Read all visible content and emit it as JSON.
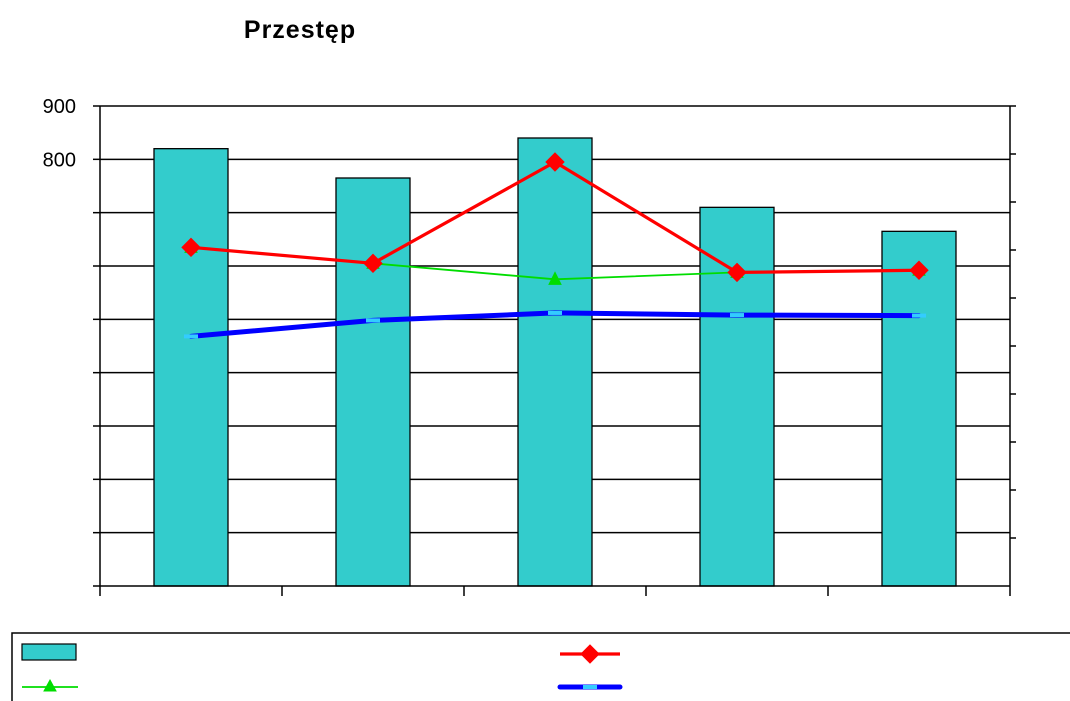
{
  "chart_data": {
    "type": "bar",
    "title": "Przestęp",
    "xlabel": "",
    "ylabel": "",
    "categories": [
      "",
      "",
      "",
      "",
      ""
    ],
    "ylim": [
      0,
      900
    ],
    "yticks": [
      0,
      100,
      200,
      300,
      400,
      500,
      600,
      700,
      800,
      900
    ],
    "ytick_labels": [
      "",
      "",
      "",
      "",
      "",
      "",
      "",
      "",
      "800",
      "900"
    ],
    "grid": true,
    "legend_position": "bottom",
    "series": [
      {
        "kind": "bar",
        "color": "#33CCCC",
        "values": [
          820,
          765,
          840,
          710,
          665
        ]
      },
      {
        "kind": "line",
        "marker": "diamond",
        "color": "#FF0000",
        "values": [
          635,
          605,
          795,
          588,
          592
        ]
      },
      {
        "kind": "line",
        "marker": "triangle",
        "color": "#00DD00",
        "values": [
          635,
          605,
          575,
          588,
          592
        ]
      },
      {
        "kind": "line",
        "marker": "dash",
        "color": "#0000FF",
        "marker_color": "#33CCFF",
        "values": [
          468,
          498,
          512,
          508,
          507
        ]
      }
    ]
  }
}
